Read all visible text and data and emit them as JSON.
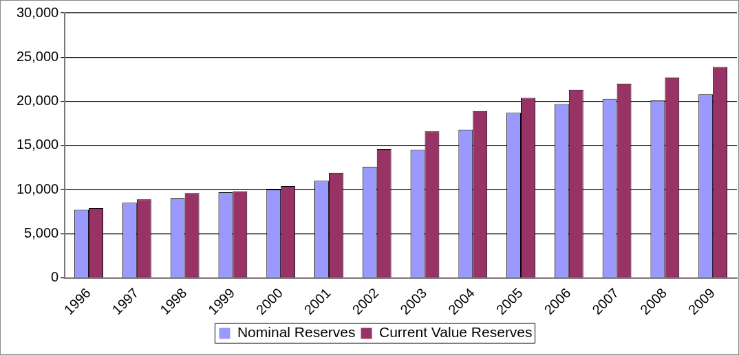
{
  "chart_data": {
    "type": "bar",
    "categories": [
      "1996",
      "1997",
      "1998",
      "1999",
      "2000",
      "2001",
      "2002",
      "2003",
      "2004",
      "2005",
      "2006",
      "2007",
      "2008",
      "2009"
    ],
    "series": [
      {
        "name": "Nominal Reserves",
        "color": "#9999ff",
        "values": [
          7700,
          8500,
          9000,
          9700,
          10000,
          11000,
          12600,
          14500,
          16800,
          18700,
          19700,
          20300,
          20100,
          20800
        ]
      },
      {
        "name": "Current Value Reserves",
        "color": "#993366",
        "values": [
          7900,
          8900,
          9600,
          9800,
          10400,
          11900,
          14600,
          16600,
          18900,
          20400,
          21300,
          22000,
          22700,
          23900
        ]
      }
    ],
    "ylim": [
      0,
      30000
    ],
    "yticks": [
      {
        "value": 0,
        "label": "0"
      },
      {
        "value": 5000,
        "label": "5,000"
      },
      {
        "value": 10000,
        "label": "10,000"
      },
      {
        "value": 15000,
        "label": "15,000"
      },
      {
        "value": 20000,
        "label": "20,000"
      },
      {
        "value": 25000,
        "label": "25,000"
      },
      {
        "value": 30000,
        "label": "30,000"
      }
    ],
    "grid": "y",
    "legend": "bottom"
  }
}
